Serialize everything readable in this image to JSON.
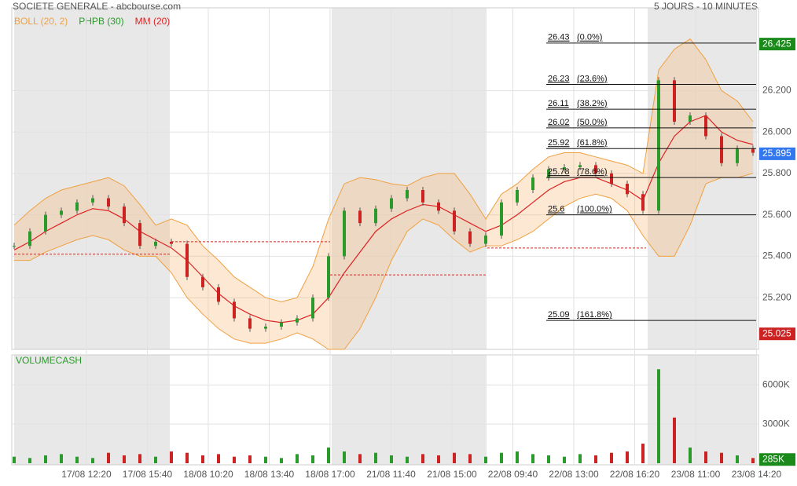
{
  "chart_data": {
    "type": "candlestick",
    "title": "SOCIETE GENERALE - abcbourse.com",
    "subtitle": "5 JOURS - 10 MINUTES",
    "legend": [
      "BOLL (20, 2)",
      "PHPB (30)",
      "MM (20)"
    ],
    "legend_colors": [
      "#f0a040",
      "#2a9a2a",
      "#dd2222"
    ],
    "xticks": [
      "17/08 12:20",
      "17/08 15:40",
      "18/08 10:20",
      "18/08 13:40",
      "18/08 17:00",
      "21/08 11:40",
      "21/08 15:00",
      "22/08 09:40",
      "22/08 13:00",
      "22/08 16:20",
      "23/08 11:00",
      "23/08 14:20"
    ],
    "ylim": [
      24.95,
      26.6
    ],
    "yticks": [
      {
        "value": 25.2,
        "label": "25.200"
      },
      {
        "value": 25.4,
        "label": "25.400"
      },
      {
        "value": 25.6,
        "label": "25.600"
      },
      {
        "value": 25.8,
        "label": "25.800"
      },
      {
        "value": 26.0,
        "label": "26.000"
      },
      {
        "value": 26.2,
        "label": "26.200"
      }
    ],
    "close": [
      25.45,
      25.52,
      25.6,
      25.62,
      25.66,
      25.68,
      25.64,
      25.56,
      25.45,
      25.47,
      25.46,
      25.3,
      25.25,
      25.18,
      25.1,
      25.05,
      25.06,
      25.08,
      25.1,
      25.2,
      25.4,
      25.62,
      25.56,
      25.63,
      25.68,
      25.72,
      25.66,
      25.62,
      25.52,
      25.46,
      25.5,
      25.66,
      25.72,
      25.78,
      25.82,
      25.83,
      25.84,
      25.8,
      25.75,
      25.7,
      25.62,
      26.25,
      26.05,
      26.08,
      25.98,
      25.85,
      25.92,
      25.9
    ],
    "mm": [
      25.43,
      25.47,
      25.52,
      25.56,
      25.6,
      25.63,
      25.62,
      25.58,
      25.52,
      25.48,
      25.44,
      25.38,
      25.3,
      25.22,
      25.16,
      25.12,
      25.09,
      25.08,
      25.09,
      25.12,
      25.2,
      25.32,
      25.42,
      25.52,
      25.58,
      25.62,
      25.65,
      25.64,
      25.6,
      25.56,
      25.52,
      25.55,
      25.6,
      25.66,
      25.72,
      25.76,
      25.78,
      25.78,
      25.75,
      25.72,
      25.67,
      25.85,
      25.98,
      26.05,
      26.08,
      26.0,
      25.96,
      25.94
    ],
    "boll_upper": [
      25.55,
      25.62,
      25.68,
      25.72,
      25.74,
      25.76,
      25.78,
      25.74,
      25.65,
      25.55,
      25.58,
      25.55,
      25.45,
      25.38,
      25.3,
      25.25,
      25.2,
      25.18,
      25.2,
      25.35,
      25.58,
      25.75,
      25.78,
      25.77,
      25.75,
      25.74,
      25.78,
      25.8,
      25.8,
      25.7,
      25.58,
      25.7,
      25.75,
      25.82,
      25.88,
      25.9,
      25.9,
      25.88,
      25.86,
      25.84,
      25.8,
      26.3,
      26.4,
      26.45,
      26.35,
      26.2,
      26.15,
      26.05
    ],
    "boll_lower": [
      25.38,
      25.38,
      25.42,
      25.45,
      25.48,
      25.5,
      25.48,
      25.43,
      25.4,
      25.4,
      25.32,
      25.2,
      25.12,
      25.05,
      25.0,
      24.98,
      24.98,
      25.0,
      25.03,
      25.0,
      24.95,
      24.95,
      25.05,
      25.2,
      25.38,
      25.52,
      25.58,
      25.55,
      25.48,
      25.42,
      25.45,
      25.45,
      25.48,
      25.52,
      25.58,
      25.64,
      25.68,
      25.7,
      25.68,
      25.62,
      25.5,
      25.4,
      25.4,
      25.55,
      25.75,
      25.78,
      25.78,
      25.8
    ],
    "ref_lines": [
      25.41,
      25.47,
      25.31,
      25.44
    ],
    "fib_levels": [
      26.43,
      26.23,
      26.11,
      26.02,
      25.92,
      25.78,
      25.6,
      25.09
    ],
    "fib_pcts": [
      "(0.0%)",
      "(23.6%)",
      "(38.2%)",
      "(50.0%)",
      "(61.8%)",
      "(78.6%)",
      "(100.0%)",
      "(161.8%)"
    ],
    "badges": [
      {
        "value": 26.425,
        "label": "26.425",
        "color": "#1a8a1a"
      },
      {
        "value": 25.895,
        "label": "25.895",
        "color": "#3377ee"
      },
      {
        "value": 25.025,
        "label": "25.025",
        "color": "#cc2222"
      }
    ],
    "volume_title": "VOLUMECASH",
    "volume": [
      500,
      400,
      600,
      700,
      500,
      400,
      800,
      600,
      700,
      500,
      900,
      800,
      600,
      700,
      500,
      600,
      500,
      400,
      700,
      600,
      1200,
      900,
      700,
      800,
      600,
      500,
      700,
      600,
      800,
      700,
      500,
      800,
      900,
      700,
      600,
      500,
      700,
      600,
      800,
      900,
      1500,
      7200,
      3500,
      1200,
      900,
      800,
      600,
      400
    ],
    "volume_ylim": [
      0,
      8300
    ],
    "volume_yticks": [
      {
        "value": 3000,
        "label": "3000K"
      },
      {
        "value": 6000,
        "label": "6000K"
      }
    ],
    "volume_badge": {
      "value": 285,
      "label": "285K",
      "color": "#1a8a1a"
    }
  }
}
